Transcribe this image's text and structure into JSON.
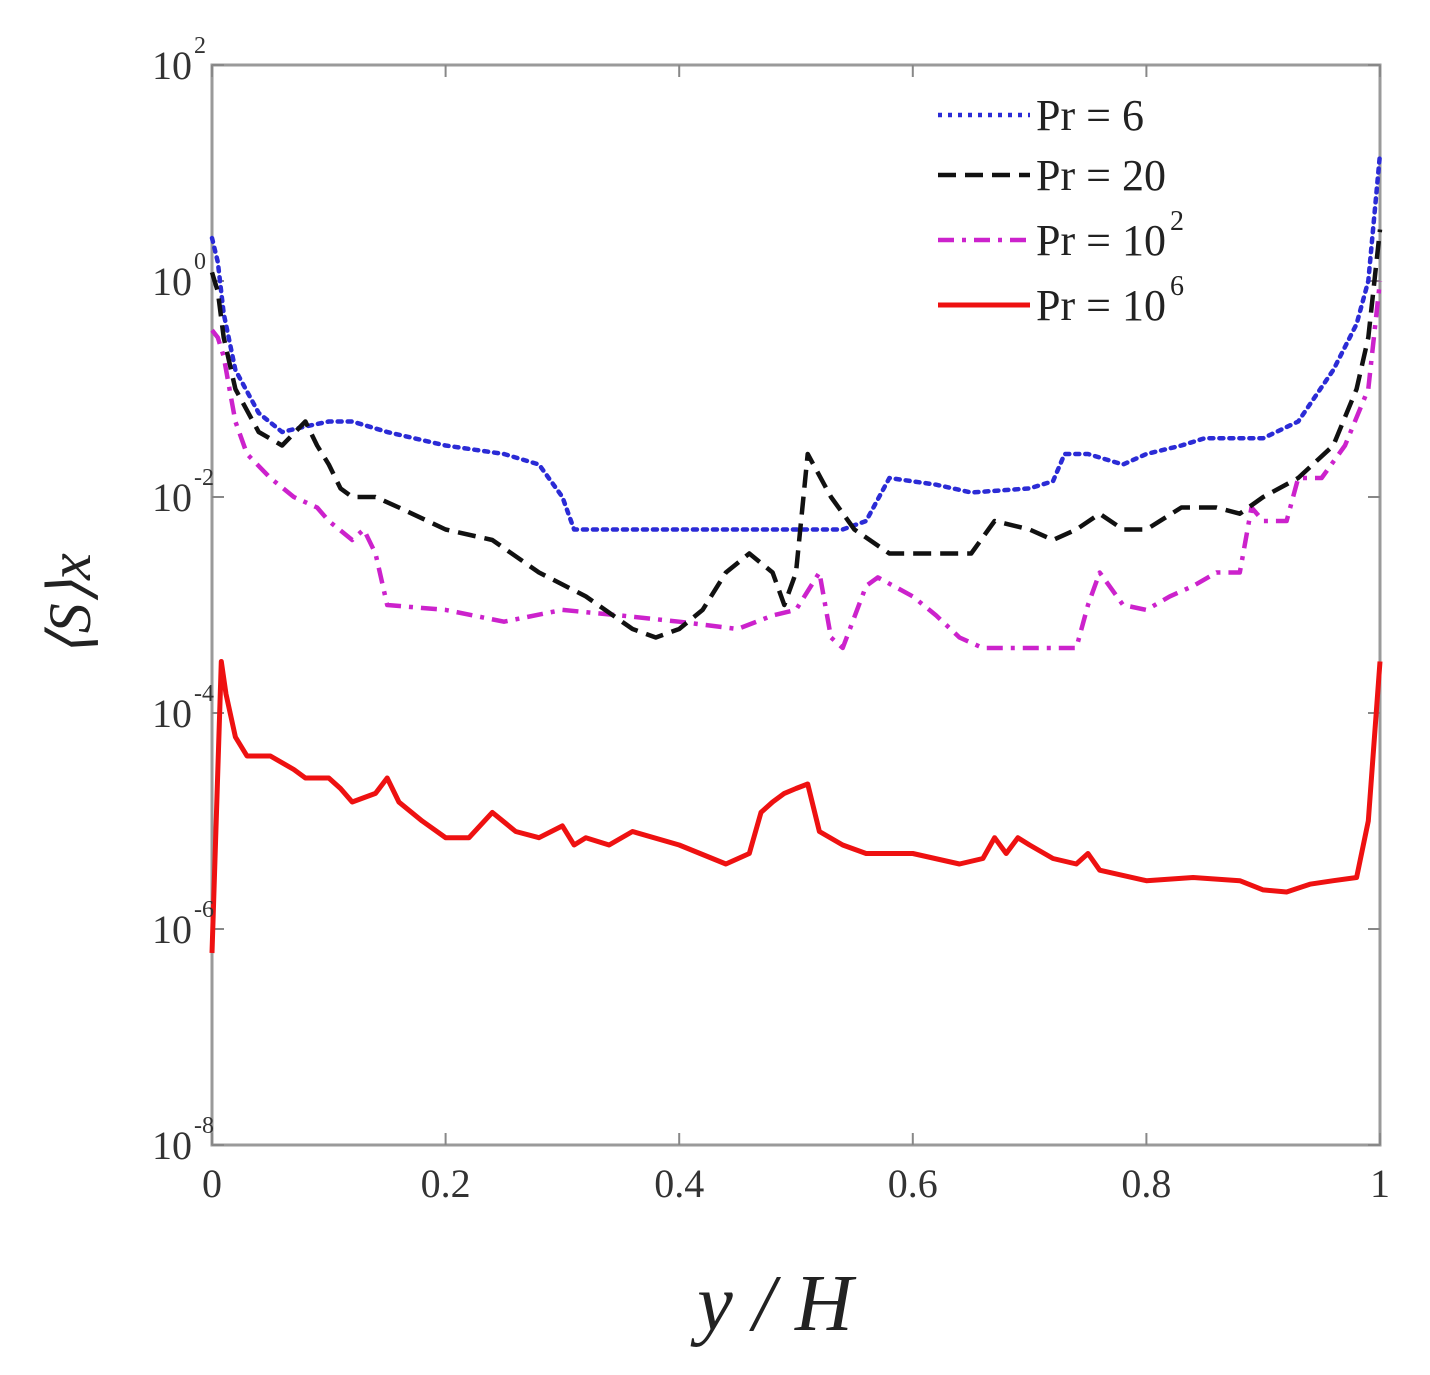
{
  "chart_data": {
    "type": "line",
    "title": "",
    "xlabel": "y / H",
    "ylabel": "⟨S⟩x",
    "xscale": "linear",
    "yscale": "log",
    "xlim": [
      0,
      1
    ],
    "ylim": [
      1e-08,
      100
    ],
    "x_ticks": [
      0,
      0.2,
      0.4,
      0.6,
      0.8,
      1
    ],
    "x_tick_labels": [
      "0",
      "0.2",
      "0.4",
      "0.6",
      "0.8",
      "1"
    ],
    "y_ticks": [
      {
        "value": 1e-08,
        "base": "10",
        "exp": "-8"
      },
      {
        "value": 1e-06,
        "base": "10",
        "exp": "-6"
      },
      {
        "value": 0.0001,
        "base": "10",
        "exp": "-4"
      },
      {
        "value": 0.01,
        "base": "10",
        "exp": "-2"
      },
      {
        "value": 1,
        "base": "10",
        "exp": "0"
      },
      {
        "value": 100,
        "base": "10",
        "exp": "2"
      }
    ],
    "legend_position": "top-right",
    "series": [
      {
        "name": "Pr = 6",
        "label_base": "Pr = 6",
        "label_exp": "",
        "color": "#2b2bd6",
        "style": "dotted",
        "x": [
          0,
          0.005,
          0.01,
          0.02,
          0.04,
          0.06,
          0.08,
          0.1,
          0.12,
          0.15,
          0.2,
          0.25,
          0.28,
          0.3,
          0.31,
          0.35,
          0.4,
          0.45,
          0.5,
          0.54,
          0.56,
          0.58,
          0.62,
          0.65,
          0.7,
          0.72,
          0.73,
          0.75,
          0.78,
          0.8,
          0.83,
          0.85,
          0.9,
          0.93,
          0.96,
          0.98,
          0.99,
          1.0
        ],
        "y": [
          2.5,
          1.5,
          0.5,
          0.15,
          0.06,
          0.04,
          0.045,
          0.05,
          0.05,
          0.04,
          0.03,
          0.025,
          0.02,
          0.01,
          0.005,
          0.005,
          0.005,
          0.005,
          0.005,
          0.005,
          0.006,
          0.015,
          0.013,
          0.011,
          0.012,
          0.014,
          0.025,
          0.025,
          0.02,
          0.025,
          0.03,
          0.035,
          0.035,
          0.05,
          0.15,
          0.4,
          1.0,
          15
        ]
      },
      {
        "name": "Pr = 20",
        "label_base": "Pr = 20",
        "label_exp": "",
        "color": "#111111",
        "style": "dashed",
        "x": [
          0,
          0.005,
          0.01,
          0.02,
          0.04,
          0.06,
          0.08,
          0.09,
          0.1,
          0.11,
          0.12,
          0.14,
          0.16,
          0.2,
          0.24,
          0.28,
          0.32,
          0.36,
          0.38,
          0.4,
          0.42,
          0.44,
          0.46,
          0.48,
          0.49,
          0.5,
          0.51,
          0.53,
          0.55,
          0.58,
          0.62,
          0.65,
          0.67,
          0.7,
          0.72,
          0.74,
          0.76,
          0.78,
          0.8,
          0.83,
          0.86,
          0.88,
          0.9,
          0.93,
          0.96,
          0.98,
          0.99,
          1.0
        ],
        "y": [
          1.2,
          0.8,
          0.3,
          0.1,
          0.04,
          0.03,
          0.05,
          0.03,
          0.02,
          0.012,
          0.01,
          0.01,
          0.008,
          0.005,
          0.004,
          0.002,
          0.0012,
          0.0006,
          0.0005,
          0.0006,
          0.0009,
          0.002,
          0.003,
          0.002,
          0.001,
          0.002,
          0.025,
          0.01,
          0.005,
          0.003,
          0.003,
          0.003,
          0.006,
          0.005,
          0.004,
          0.005,
          0.007,
          0.005,
          0.005,
          0.008,
          0.008,
          0.007,
          0.01,
          0.015,
          0.03,
          0.1,
          0.3,
          3
        ]
      },
      {
        "name": "Pr = 10^2",
        "label_base": "Pr = 10",
        "label_exp": "2",
        "color": "#cc22cc",
        "style": "dashdot",
        "x": [
          0,
          0.005,
          0.01,
          0.015,
          0.02,
          0.03,
          0.05,
          0.07,
          0.09,
          0.1,
          0.12,
          0.13,
          0.14,
          0.15,
          0.2,
          0.25,
          0.3,
          0.35,
          0.4,
          0.45,
          0.48,
          0.5,
          0.52,
          0.53,
          0.54,
          0.56,
          0.57,
          0.6,
          0.62,
          0.64,
          0.66,
          0.7,
          0.72,
          0.74,
          0.75,
          0.76,
          0.78,
          0.8,
          0.82,
          0.84,
          0.86,
          0.88,
          0.89,
          0.9,
          0.92,
          0.93,
          0.95,
          0.97,
          0.99,
          1.0
        ],
        "y": [
          0.35,
          0.3,
          0.2,
          0.1,
          0.05,
          0.025,
          0.015,
          0.01,
          0.008,
          0.006,
          0.004,
          0.005,
          0.003,
          0.001,
          0.0009,
          0.0007,
          0.0009,
          0.0008,
          0.0007,
          0.0006,
          0.0008,
          0.0009,
          0.002,
          0.0005,
          0.0004,
          0.0015,
          0.0018,
          0.0012,
          0.0008,
          0.0005,
          0.0004,
          0.0004,
          0.0004,
          0.0004,
          0.001,
          0.002,
          0.001,
          0.0009,
          0.0012,
          0.0015,
          0.002,
          0.002,
          0.008,
          0.006,
          0.006,
          0.015,
          0.015,
          0.03,
          0.1,
          1.0
        ]
      },
      {
        "name": "Pr = 10^6",
        "label_base": "Pr = 10",
        "label_exp": "6",
        "color": "#ee1111",
        "style": "solid",
        "x": [
          0,
          0.008,
          0.012,
          0.02,
          0.03,
          0.05,
          0.07,
          0.08,
          0.1,
          0.11,
          0.12,
          0.14,
          0.15,
          0.16,
          0.18,
          0.2,
          0.22,
          0.24,
          0.26,
          0.28,
          0.3,
          0.31,
          0.32,
          0.34,
          0.36,
          0.4,
          0.44,
          0.46,
          0.47,
          0.48,
          0.49,
          0.5,
          0.51,
          0.52,
          0.54,
          0.56,
          0.6,
          0.64,
          0.66,
          0.67,
          0.68,
          0.69,
          0.7,
          0.72,
          0.74,
          0.75,
          0.76,
          0.8,
          0.84,
          0.88,
          0.9,
          0.92,
          0.94,
          0.96,
          0.98,
          0.99,
          1.0
        ],
        "y": [
          6e-07,
          0.0003,
          0.00015,
          6e-05,
          4e-05,
          4e-05,
          3e-05,
          2.5e-05,
          2.5e-05,
          2e-05,
          1.5e-05,
          1.8e-05,
          2.5e-05,
          1.5e-05,
          1e-05,
          7e-06,
          7e-06,
          1.2e-05,
          8e-06,
          7e-06,
          9e-06,
          6e-06,
          7e-06,
          6e-06,
          8e-06,
          6e-06,
          4e-06,
          5e-06,
          1.2e-05,
          1.5e-05,
          1.8e-05,
          2e-05,
          2.2e-05,
          8e-06,
          6e-06,
          5e-06,
          5e-06,
          4e-06,
          4.5e-06,
          7e-06,
          5e-06,
          7e-06,
          6e-06,
          4.5e-06,
          4e-06,
          5e-06,
          3.5e-06,
          2.8e-06,
          3e-06,
          2.8e-06,
          2.3e-06,
          2.2e-06,
          2.6e-06,
          2.8e-06,
          3e-06,
          1e-05,
          0.0003
        ]
      }
    ]
  }
}
